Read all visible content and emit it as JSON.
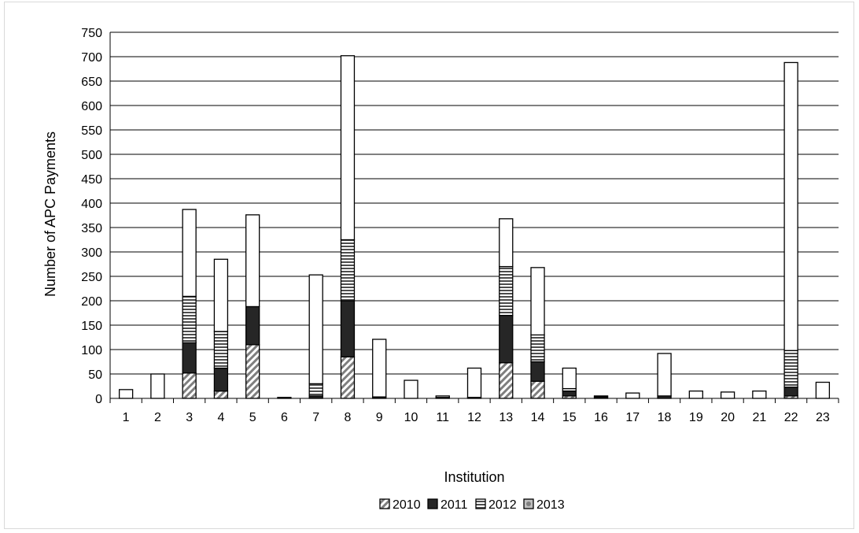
{
  "chart_data": {
    "type": "bar",
    "stacked": true,
    "xlabel": "Institution",
    "ylabel": "Number of APC Payments",
    "ylim": [
      0,
      750
    ],
    "yticks": [
      0,
      50,
      100,
      150,
      200,
      250,
      300,
      350,
      400,
      450,
      500,
      550,
      600,
      650,
      700,
      750
    ],
    "grid": true,
    "legend_position": "bottom",
    "categories": [
      "1",
      "2",
      "3",
      "4",
      "5",
      "6",
      "7",
      "8",
      "9",
      "10",
      "11",
      "12",
      "13",
      "14",
      "15",
      "16",
      "17",
      "18",
      "19",
      "20",
      "21",
      "22",
      "23"
    ],
    "series": [
      {
        "name": "2010",
        "pattern": "diagonal",
        "values": [
          0,
          0,
          52,
          15,
          110,
          0,
          0,
          85,
          0,
          0,
          0,
          0,
          73,
          35,
          5,
          0,
          0,
          0,
          0,
          0,
          0,
          5,
          0
        ]
      },
      {
        "name": "2011",
        "pattern": "solid",
        "values": [
          0,
          0,
          62,
          47,
          78,
          0,
          5,
          115,
          3,
          0,
          2,
          2,
          97,
          40,
          10,
          3,
          0,
          5,
          0,
          0,
          0,
          18,
          0
        ]
      },
      {
        "name": "2012",
        "pattern": "horizontal",
        "values": [
          0,
          0,
          95,
          75,
          0,
          0,
          25,
          125,
          0,
          0,
          0,
          0,
          100,
          55,
          5,
          0,
          0,
          0,
          0,
          0,
          0,
          75,
          0
        ]
      },
      {
        "name": "2013",
        "pattern": "white",
        "values": [
          18,
          50,
          178,
          148,
          188,
          2,
          223,
          377,
          118,
          37,
          3,
          60,
          98,
          138,
          42,
          2,
          11,
          87,
          15,
          13,
          15,
          590,
          33
        ]
      }
    ]
  }
}
